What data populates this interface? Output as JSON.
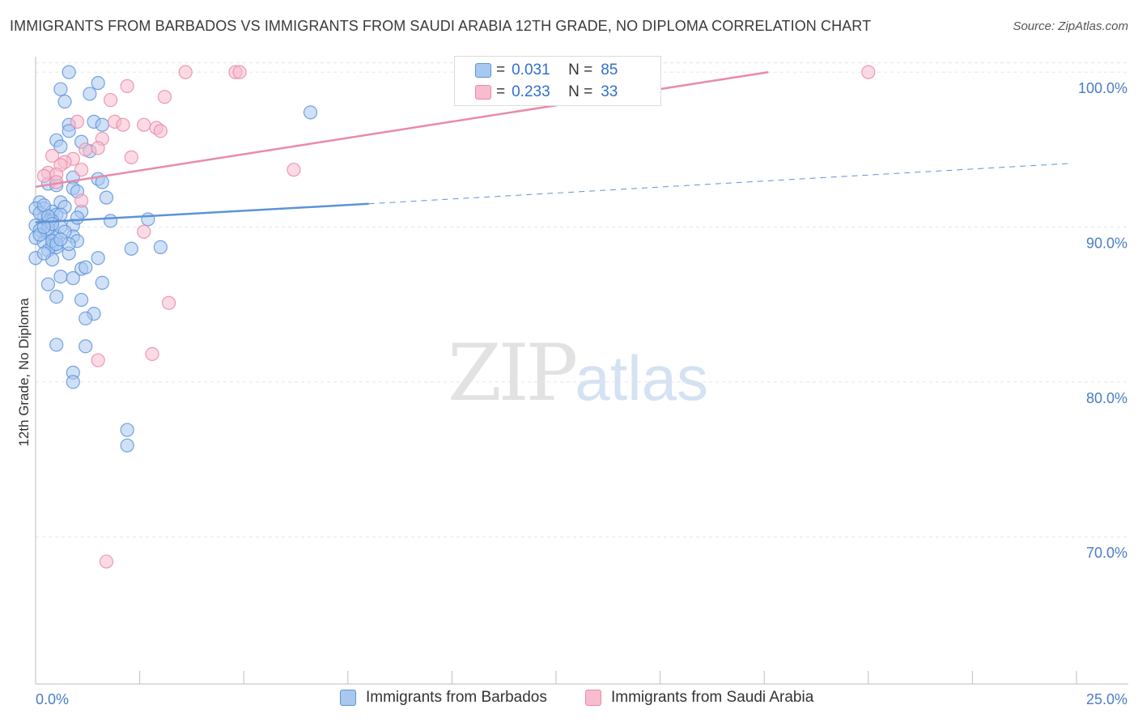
{
  "title": "IMMIGRANTS FROM BARBADOS VS IMMIGRANTS FROM SAUDI ARABIA 12TH GRADE, NO DIPLOMA CORRELATION CHART",
  "source": "Source: ZipAtlas.com",
  "watermark": {
    "zip": "ZIP",
    "atlas": "atlas"
  },
  "legend": {
    "r_label": "R =",
    "n_label": "N =",
    "series": [
      {
        "r": "0.031",
        "n": "85",
        "color": "#a9c8f0",
        "stroke": "#5d93d8"
      },
      {
        "r": "0.233",
        "n": "33",
        "color": "#f7bccd",
        "stroke": "#e98aa8"
      }
    ]
  },
  "bottom_legend": [
    "Immigrants from Barbados",
    "Immigrants from Saudi Arabia"
  ],
  "chart_data": {
    "type": "scatter",
    "title": "IMMIGRANTS FROM BARBADOS VS IMMIGRANTS FROM SAUDI ARABIA 12TH GRADE, NO DIPLOMA CORRELATION CHART",
    "xlabel": "",
    "ylabel": "12th Grade, No Diploma",
    "xlim": [
      0,
      25
    ],
    "ylim": [
      60.5,
      101
    ],
    "x_tick_labels": [
      "0.0%",
      "25.0%"
    ],
    "y_ticks": [
      70,
      80,
      90,
      100
    ],
    "y_tick_labels": [
      "70.0%",
      "80.0%",
      "90.0%",
      "100.0%"
    ],
    "series": [
      {
        "name": "Immigrants from Barbados",
        "color": "#5d93d8",
        "fill": "#a9c8f0",
        "trend": {
          "x0": 0,
          "y0": 90.3,
          "x1": 8,
          "y1": 91.5,
          "dash_x1": 24.8,
          "dash_y1": 94.1
        },
        "points": [
          [
            0.8,
            100
          ],
          [
            1.5,
            99.3
          ],
          [
            0.6,
            98.9
          ],
          [
            1.3,
            98.6
          ],
          [
            0.7,
            98.1
          ],
          [
            6.6,
            97.4
          ],
          [
            1.4,
            96.8
          ],
          [
            1.6,
            96.6
          ],
          [
            0.8,
            96.6
          ],
          [
            0.8,
            96.2
          ],
          [
            0.5,
            95.6
          ],
          [
            1.1,
            95.5
          ],
          [
            0.6,
            95.2
          ],
          [
            1.3,
            94.9
          ],
          [
            1.5,
            93.1
          ],
          [
            0.9,
            93.2
          ],
          [
            1.6,
            92.9
          ],
          [
            0.3,
            92.8
          ],
          [
            0.5,
            92.7
          ],
          [
            0.9,
            92.5
          ],
          [
            1.0,
            92.3
          ],
          [
            1.7,
            91.9
          ],
          [
            0.1,
            91.6
          ],
          [
            0.6,
            91.6
          ],
          [
            0.7,
            91.3
          ],
          [
            0.2,
            91.2
          ],
          [
            0.0,
            91.2
          ],
          [
            0.4,
            91.0
          ],
          [
            1.1,
            91.0
          ],
          [
            0.5,
            90.8
          ],
          [
            0.6,
            90.8
          ],
          [
            0.2,
            90.6
          ],
          [
            2.7,
            90.5
          ],
          [
            1.8,
            90.4
          ],
          [
            0.3,
            90.4
          ],
          [
            0.4,
            90.4
          ],
          [
            0.0,
            90.1
          ],
          [
            0.9,
            90.1
          ],
          [
            0.1,
            89.8
          ],
          [
            0.3,
            89.6
          ],
          [
            0.5,
            89.4
          ],
          [
            0.9,
            89.4
          ],
          [
            0.0,
            89.3
          ],
          [
            1.0,
            89.1
          ],
          [
            0.2,
            89.0
          ],
          [
            0.4,
            88.8
          ],
          [
            0.5,
            88.7
          ],
          [
            3.0,
            88.7
          ],
          [
            2.3,
            88.6
          ],
          [
            0.3,
            88.5
          ],
          [
            0.8,
            88.3
          ],
          [
            0.0,
            88.0
          ],
          [
            1.5,
            88.0
          ],
          [
            0.4,
            87.9
          ],
          [
            1.1,
            87.3
          ],
          [
            1.2,
            87.4
          ],
          [
            0.6,
            86.8
          ],
          [
            0.9,
            86.7
          ],
          [
            0.3,
            86.3
          ],
          [
            1.6,
            86.4
          ],
          [
            0.5,
            85.5
          ],
          [
            1.1,
            85.3
          ],
          [
            1.4,
            84.4
          ],
          [
            1.2,
            84.1
          ],
          [
            0.5,
            82.4
          ],
          [
            1.2,
            82.3
          ],
          [
            0.9,
            80.6
          ],
          [
            0.9,
            80.0
          ],
          [
            2.2,
            76.9
          ],
          [
            2.2,
            75.9
          ],
          [
            0.1,
            90.9
          ],
          [
            0.2,
            91.4
          ],
          [
            0.3,
            89.9
          ],
          [
            0.4,
            89.1
          ],
          [
            0.6,
            90.0
          ],
          [
            0.7,
            89.7
          ],
          [
            0.8,
            88.9
          ],
          [
            1.0,
            90.6
          ],
          [
            0.2,
            88.3
          ],
          [
            0.1,
            89.5
          ],
          [
            0.3,
            90.7
          ],
          [
            0.5,
            88.9
          ],
          [
            0.6,
            89.2
          ],
          [
            0.4,
            90.2
          ],
          [
            0.2,
            90.0
          ]
        ]
      },
      {
        "name": "Immigrants from Saudi Arabia",
        "color": "#e98aa8",
        "fill": "#f7bccd",
        "trend": {
          "x0": 0,
          "y0": 92.6,
          "x1": 17.6,
          "y1": 100
        },
        "points": [
          [
            3.6,
            100
          ],
          [
            4.8,
            100
          ],
          [
            4.9,
            100
          ],
          [
            20.0,
            100
          ],
          [
            2.2,
            99.1
          ],
          [
            3.1,
            98.4
          ],
          [
            1.8,
            98.2
          ],
          [
            1.0,
            96.8
          ],
          [
            1.9,
            96.8
          ],
          [
            2.1,
            96.6
          ],
          [
            2.6,
            96.6
          ],
          [
            2.9,
            96.4
          ],
          [
            3.0,
            96.2
          ],
          [
            1.6,
            95.7
          ],
          [
            1.5,
            95.1
          ],
          [
            0.4,
            94.6
          ],
          [
            2.3,
            94.5
          ],
          [
            0.9,
            94.4
          ],
          [
            0.7,
            94.2
          ],
          [
            0.6,
            94.0
          ],
          [
            1.1,
            93.7
          ],
          [
            6.2,
            93.7
          ],
          [
            0.3,
            93.5
          ],
          [
            0.5,
            93.4
          ],
          [
            0.2,
            93.3
          ],
          [
            0.5,
            92.9
          ],
          [
            1.1,
            91.7
          ],
          [
            2.6,
            89.7
          ],
          [
            3.2,
            85.1
          ],
          [
            2.8,
            81.8
          ],
          [
            1.5,
            81.4
          ],
          [
            1.7,
            68.4
          ],
          [
            1.2,
            95.0
          ]
        ]
      }
    ]
  }
}
